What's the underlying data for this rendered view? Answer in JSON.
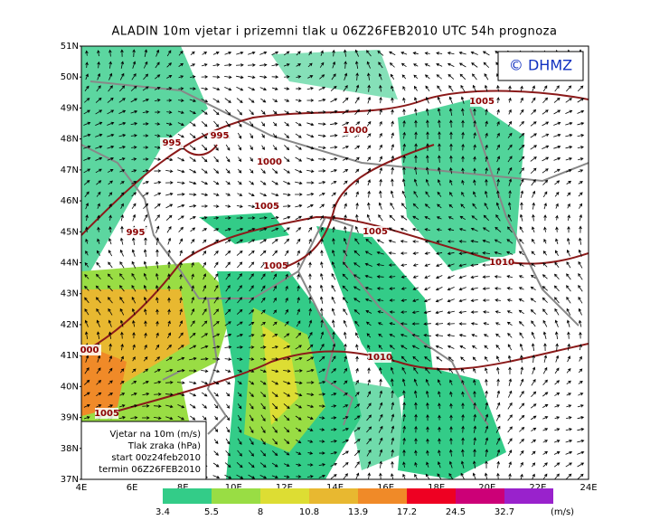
{
  "title": "ALADIN 10m vjetar i prizemni tlak u 06Z26FEB2010 UTC 54h prognoza",
  "logo": "© DHMZ",
  "map": {
    "lat_labels": [
      "51N",
      "50N",
      "49N",
      "48N",
      "47N",
      "46N",
      "45N",
      "44N",
      "43N",
      "42N",
      "41N",
      "40N",
      "39N",
      "38N",
      "37N"
    ],
    "lon_labels": [
      "4E",
      "6E",
      "8E",
      "10E",
      "12E",
      "14E",
      "16E",
      "18E",
      "20E",
      "22E",
      "24E"
    ],
    "isobar_labels": [
      "995",
      "995",
      "1000",
      "1000",
      "1005",
      "1005",
      "995",
      "1005",
      "1005",
      "1010",
      "1010",
      "000",
      "1005"
    ]
  },
  "info_box": [
    "Vjetar na 10m (m/s)",
    "Tlak zraka (hPa)",
    "start 00z24feb2010",
    "termin 06Z26FEB2010"
  ],
  "colorbar": {
    "labels": [
      "3.4",
      "5.5",
      "8",
      "10.8",
      "13.9",
      "17.2",
      "24.5",
      "32.7"
    ],
    "colors": [
      "#33cc88",
      "#99dd44",
      "#dddd33",
      "#e8b830",
      "#f08a28",
      "#ee0022",
      "#cc0077",
      "#9922cc"
    ],
    "units": "(m/s)"
  }
}
